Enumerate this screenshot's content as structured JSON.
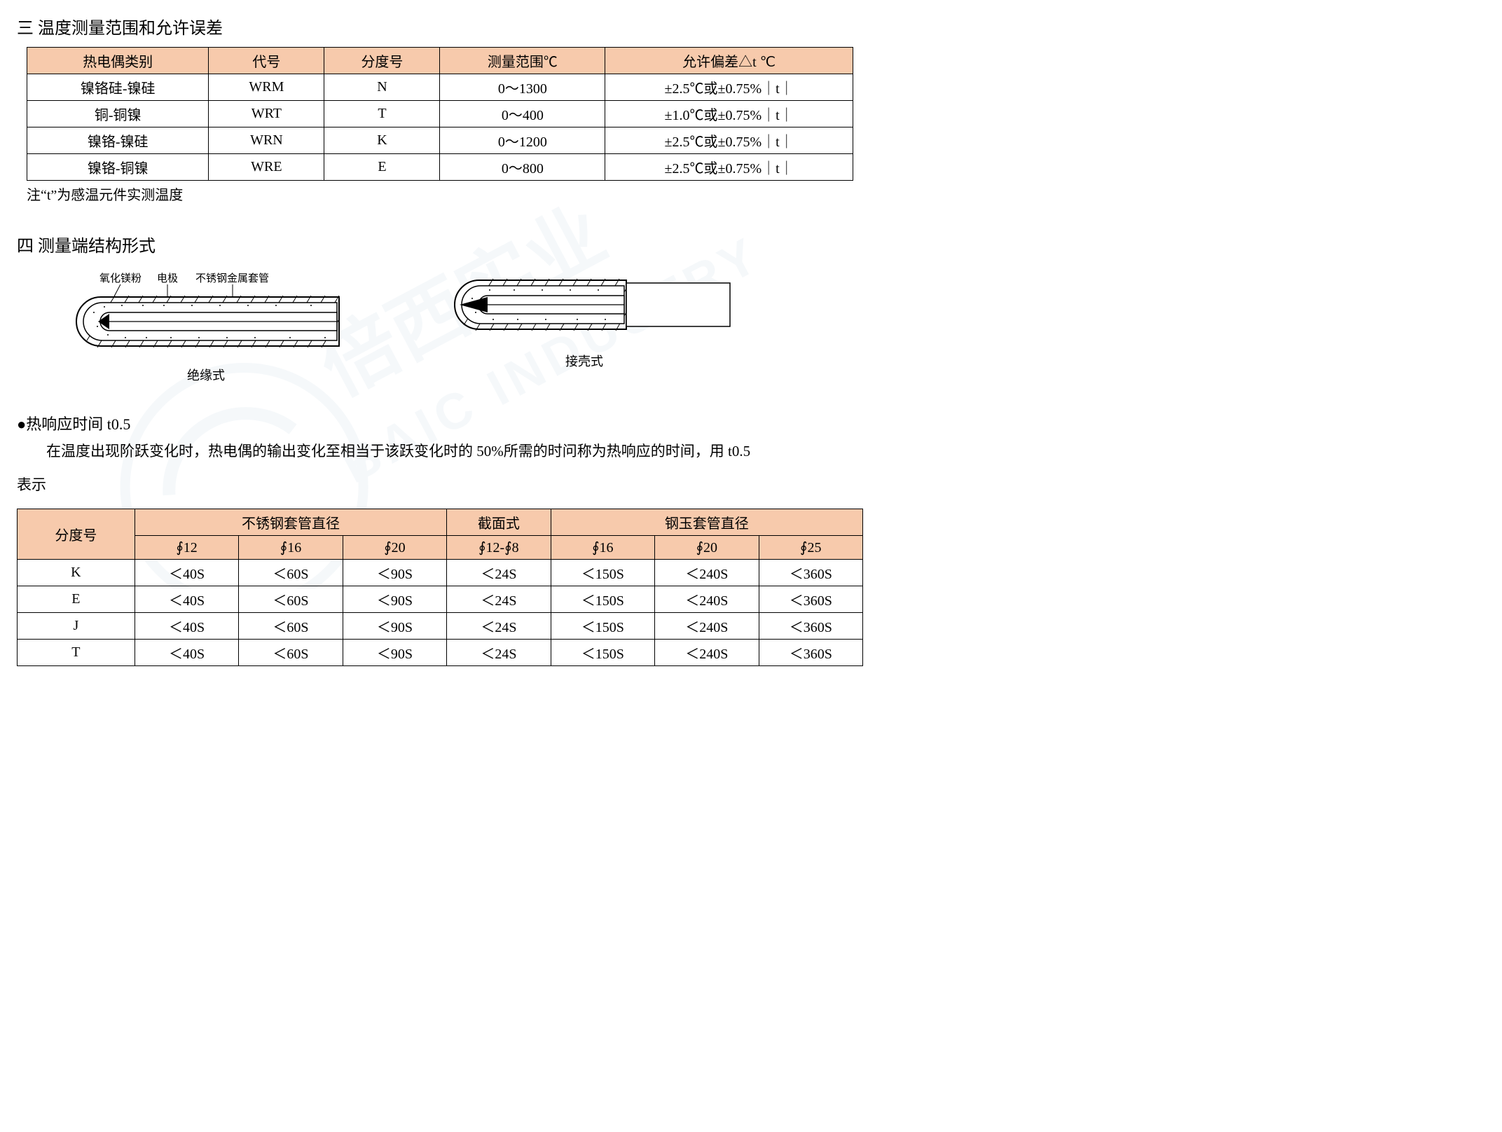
{
  "section3": {
    "title": "三 温度测量范围和允许误差",
    "headers": [
      "热电偶类别",
      "代号",
      "分度号",
      "测量范围℃",
      "允许偏差△t  ℃"
    ],
    "rows": [
      [
        "镍铬硅-镍硅",
        "WRM",
        "N",
        "0～1300",
        "±2.5℃或±0.75%｜t｜"
      ],
      [
        "铜-铜镍",
        "WRT",
        "T",
        "0～400",
        "±1.0℃或±0.75%｜t｜"
      ],
      [
        "镍铬-镍硅",
        "WRN",
        "K",
        "0～1200",
        "±2.5℃或±0.75%｜t｜"
      ],
      [
        "镍铬-铜镍",
        "WRE",
        "E",
        "0～800",
        "±2.5℃或±0.75%｜t｜"
      ]
    ],
    "note": "注“t”为感温元件实测温度"
  },
  "section4": {
    "title": "四 测量端结构形式",
    "labels": {
      "l1": "氧化镁粉",
      "l2": "电极",
      "l3": "不锈钢金属套管"
    },
    "captions": {
      "left": "绝缘式",
      "right": "接壳式"
    }
  },
  "response": {
    "bullet": "●热响应时间 t0.5",
    "para1": "在温度出现阶跃变化时，热电偶的输出变化至相当于该跃变化时的 50%所需的时问称为热响应的时间，用 t0.5",
    "para2": "表示"
  },
  "table2": {
    "h_rowspan": "分度号",
    "h_group1": "不锈钢套管直径",
    "h_group2": "截面式",
    "h_group3": "钢玉套管直径",
    "sub": [
      "∮12",
      "∮16",
      "∮20",
      "∮12-∮8",
      "∮16",
      "∮20",
      "∮25"
    ],
    "rows": [
      [
        "K",
        "＜40S",
        "＜60S",
        "＜90S",
        "＜24S",
        "＜150S",
        "＜240S",
        "＜360S"
      ],
      [
        "E",
        "＜40S",
        "＜60S",
        "＜90S",
        "＜24S",
        "＜150S",
        "＜240S",
        "＜360S"
      ],
      [
        "J",
        "＜40S",
        "＜60S",
        "＜90S",
        "＜24S",
        "＜150S",
        "＜240S",
        "＜360S"
      ],
      [
        "T",
        "＜40S",
        "＜60S",
        "＜90S",
        "＜24S",
        "＜150S",
        "＜240S",
        "＜360S"
      ]
    ]
  },
  "style": {
    "header_bg": "#f7caac",
    "border": "#000000",
    "watermark_color": "#d8e4ec"
  }
}
